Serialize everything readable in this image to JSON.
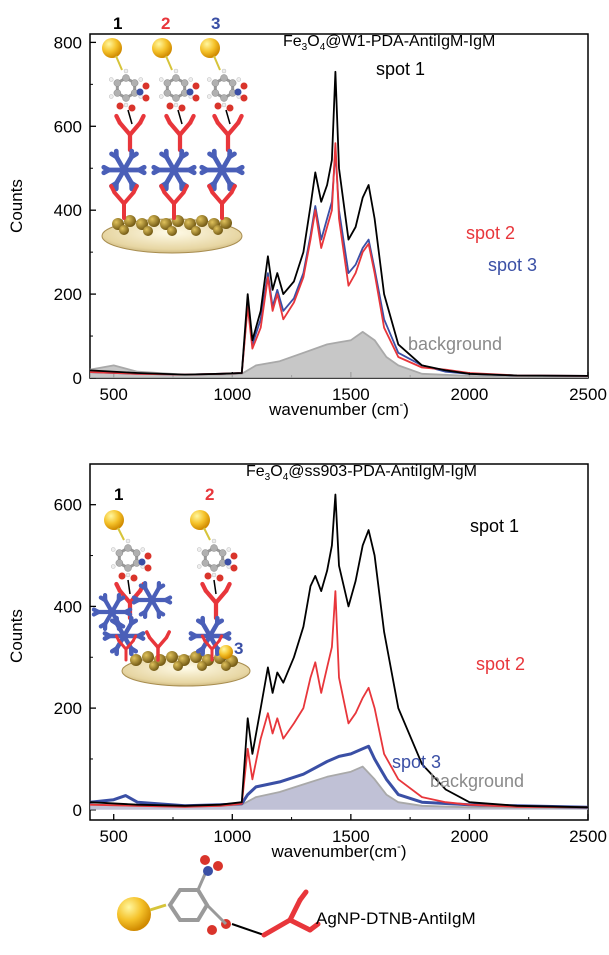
{
  "colors": {
    "spot1": "#000000",
    "spot2": "#e8363b",
    "spot3": "#3a4fa5",
    "background": "#a9a9a9",
    "background_fill": "#bdbdbd",
    "label_gray": "#8a8a8a"
  },
  "insets": {
    "top": {
      "numbers": [
        "1",
        "2",
        "3"
      ],
      "number_colors": [
        "#000000",
        "#e8363b",
        "#3a4fa5"
      ]
    },
    "bottom": {
      "numbers": [
        "1",
        "2",
        "3"
      ],
      "number_colors": [
        "#000000",
        "#e8363b",
        "#3a4fa5"
      ]
    }
  },
  "legend_molecule": {
    "label": "AgNP-DTNB-AntiIgM"
  },
  "chart_data": [
    {
      "type": "line",
      "title_parts": {
        "a": "Fe",
        "sub1": "3",
        "b": "O",
        "sub2": "4",
        "c": "@W1-PDA-AntiIgM-IgM"
      },
      "xlabel": "wavenumber (cm",
      "xlabel_sup": "-",
      "xlabel_close": ")",
      "ylabel": "Counts",
      "xlim": [
        400,
        2500
      ],
      "ylim": [
        0,
        820
      ],
      "xticks": [
        "500",
        "1000",
        "1500",
        "2000",
        "2500"
      ],
      "yticks": [
        "0",
        "200",
        "400",
        "600",
        "800"
      ],
      "grid": false,
      "series": [
        {
          "name": "spot 1",
          "label": "spot 1",
          "points": [
            [
              400,
              18
            ],
            [
              600,
              12
            ],
            [
              800,
              8
            ],
            [
              950,
              10
            ],
            [
              1040,
              12
            ],
            [
              1065,
              200
            ],
            [
              1085,
              90
            ],
            [
              1120,
              160
            ],
            [
              1150,
              290
            ],
            [
              1170,
              210
            ],
            [
              1190,
              250
            ],
            [
              1215,
              200
            ],
            [
              1260,
              230
            ],
            [
              1300,
              300
            ],
            [
              1330,
              410
            ],
            [
              1350,
              490
            ],
            [
              1375,
              420
            ],
            [
              1400,
              460
            ],
            [
              1420,
              520
            ],
            [
              1435,
              730
            ],
            [
              1450,
              500
            ],
            [
              1490,
              330
            ],
            [
              1520,
              360
            ],
            [
              1550,
              430
            ],
            [
              1575,
              460
            ],
            [
              1600,
              380
            ],
            [
              1640,
              200
            ],
            [
              1700,
              80
            ],
            [
              1800,
              30
            ],
            [
              1900,
              18
            ],
            [
              2000,
              10
            ],
            [
              2200,
              6
            ],
            [
              2500,
              5
            ]
          ]
        },
        {
          "name": "spot 2",
          "label": "spot 2",
          "points": [
            [
              400,
              14
            ],
            [
              600,
              10
            ],
            [
              800,
              8
            ],
            [
              950,
              10
            ],
            [
              1040,
              12
            ],
            [
              1065,
              170
            ],
            [
              1085,
              70
            ],
            [
              1120,
              120
            ],
            [
              1150,
              240
            ],
            [
              1170,
              160
            ],
            [
              1190,
              200
            ],
            [
              1215,
              140
            ],
            [
              1260,
              180
            ],
            [
              1300,
              240
            ],
            [
              1330,
              330
            ],
            [
              1350,
              400
            ],
            [
              1375,
              310
            ],
            [
              1400,
              360
            ],
            [
              1420,
              400
            ],
            [
              1435,
              560
            ],
            [
              1450,
              380
            ],
            [
              1490,
              220
            ],
            [
              1520,
              250
            ],
            [
              1550,
              300
            ],
            [
              1575,
              320
            ],
            [
              1600,
              250
            ],
            [
              1640,
              120
            ],
            [
              1700,
              50
            ],
            [
              1800,
              25
            ],
            [
              1900,
              20
            ],
            [
              2000,
              12
            ],
            [
              2200,
              6
            ],
            [
              2500,
              5
            ]
          ]
        },
        {
          "name": "spot 3",
          "label": "spot 3",
          "points": [
            [
              400,
              14
            ],
            [
              600,
              10
            ],
            [
              800,
              8
            ],
            [
              950,
              10
            ],
            [
              1040,
              12
            ],
            [
              1065,
              180
            ],
            [
              1085,
              80
            ],
            [
              1120,
              140
            ],
            [
              1150,
              250
            ],
            [
              1170,
              170
            ],
            [
              1190,
              210
            ],
            [
              1215,
              160
            ],
            [
              1260,
              190
            ],
            [
              1300,
              250
            ],
            [
              1330,
              340
            ],
            [
              1350,
              410
            ],
            [
              1375,
              330
            ],
            [
              1400,
              380
            ],
            [
              1420,
              420
            ],
            [
              1435,
              540
            ],
            [
              1450,
              400
            ],
            [
              1490,
              250
            ],
            [
              1520,
              270
            ],
            [
              1550,
              310
            ],
            [
              1575,
              330
            ],
            [
              1600,
              260
            ],
            [
              1640,
              140
            ],
            [
              1700,
              60
            ],
            [
              1800,
              30
            ],
            [
              1900,
              15
            ],
            [
              2000,
              10
            ],
            [
              2200,
              6
            ],
            [
              2500,
              5
            ]
          ]
        },
        {
          "name": "background",
          "label": "background",
          "points": [
            [
              400,
              20
            ],
            [
              500,
              30
            ],
            [
              600,
              15
            ],
            [
              800,
              8
            ],
            [
              950,
              8
            ],
            [
              1040,
              10
            ],
            [
              1100,
              30
            ],
            [
              1200,
              40
            ],
            [
              1300,
              60
            ],
            [
              1400,
              80
            ],
            [
              1450,
              85
            ],
            [
              1500,
              90
            ],
            [
              1550,
              110
            ],
            [
              1600,
              90
            ],
            [
              1650,
              50
            ],
            [
              1700,
              30
            ],
            [
              1800,
              10
            ],
            [
              2000,
              5
            ],
            [
              2500,
              3
            ]
          ]
        }
      ]
    },
    {
      "type": "line",
      "title_parts": {
        "a": "Fe",
        "sub1": "3",
        "b": "O",
        "sub2": "4",
        "c": "@ss903-PDA-AntiIgM-IgM"
      },
      "xlabel": "wavenumber(cm",
      "xlabel_sup": "-",
      "xlabel_close": ")",
      "ylabel": "Counts",
      "xlim": [
        400,
        2500
      ],
      "ylim": [
        -20,
        680
      ],
      "xticks": [
        "500",
        "1000",
        "1500",
        "2000",
        "2500"
      ],
      "yticks": [
        "0",
        "200",
        "400",
        "600"
      ],
      "grid": false,
      "series": [
        {
          "name": "spot 1",
          "label": "spot 1",
          "points": [
            [
              400,
              15
            ],
            [
              600,
              10
            ],
            [
              800,
              8
            ],
            [
              950,
              10
            ],
            [
              1040,
              15
            ],
            [
              1065,
              180
            ],
            [
              1085,
              110
            ],
            [
              1120,
              200
            ],
            [
              1150,
              280
            ],
            [
              1170,
              230
            ],
            [
              1190,
              270
            ],
            [
              1215,
              250
            ],
            [
              1260,
              300
            ],
            [
              1300,
              360
            ],
            [
              1330,
              440
            ],
            [
              1350,
              460
            ],
            [
              1375,
              430
            ],
            [
              1400,
              470
            ],
            [
              1420,
              520
            ],
            [
              1435,
              620
            ],
            [
              1450,
              480
            ],
            [
              1490,
              400
            ],
            [
              1520,
              450
            ],
            [
              1550,
              520
            ],
            [
              1575,
              550
            ],
            [
              1600,
              500
            ],
            [
              1640,
              350
            ],
            [
              1700,
              200
            ],
            [
              1800,
              90
            ],
            [
              1900,
              40
            ],
            [
              2000,
              15
            ],
            [
              2200,
              8
            ],
            [
              2500,
              5
            ]
          ]
        },
        {
          "name": "spot 2",
          "label": "spot 2",
          "points": [
            [
              400,
              10
            ],
            [
              600,
              8
            ],
            [
              800,
              6
            ],
            [
              950,
              8
            ],
            [
              1040,
              12
            ],
            [
              1065,
              120
            ],
            [
              1085,
              60
            ],
            [
              1120,
              140
            ],
            [
              1150,
              190
            ],
            [
              1170,
              150
            ],
            [
              1190,
              180
            ],
            [
              1215,
              140
            ],
            [
              1260,
              170
            ],
            [
              1300,
              200
            ],
            [
              1330,
              260
            ],
            [
              1350,
              290
            ],
            [
              1375,
              230
            ],
            [
              1400,
              280
            ],
            [
              1420,
              320
            ],
            [
              1435,
              430
            ],
            [
              1450,
              260
            ],
            [
              1490,
              170
            ],
            [
              1520,
              190
            ],
            [
              1550,
              220
            ],
            [
              1575,
              240
            ],
            [
              1600,
              200
            ],
            [
              1640,
              110
            ],
            [
              1700,
              60
            ],
            [
              1800,
              25
            ],
            [
              1900,
              15
            ],
            [
              2000,
              10
            ],
            [
              2200,
              6
            ],
            [
              2500,
              5
            ]
          ]
        },
        {
          "name": "spot 3",
          "label": "spot 3",
          "points": [
            [
              400,
              15
            ],
            [
              500,
              20
            ],
            [
              550,
              28
            ],
            [
              600,
              15
            ],
            [
              800,
              8
            ],
            [
              950,
              10
            ],
            [
              1040,
              12
            ],
            [
              1065,
              30
            ],
            [
              1100,
              45
            ],
            [
              1200,
              55
            ],
            [
              1300,
              70
            ],
            [
              1400,
              95
            ],
            [
              1450,
              105
            ],
            [
              1500,
              110
            ],
            [
              1550,
              120
            ],
            [
              1575,
              125
            ],
            [
              1600,
              100
            ],
            [
              1650,
              60
            ],
            [
              1700,
              30
            ],
            [
              1800,
              15
            ],
            [
              2000,
              10
            ],
            [
              2200,
              8
            ],
            [
              2500,
              5
            ]
          ]
        },
        {
          "name": "background",
          "label": "background",
          "points": [
            [
              400,
              10
            ],
            [
              600,
              8
            ],
            [
              800,
              6
            ],
            [
              950,
              8
            ],
            [
              1040,
              10
            ],
            [
              1100,
              25
            ],
            [
              1200,
              35
            ],
            [
              1300,
              50
            ],
            [
              1400,
              65
            ],
            [
              1450,
              70
            ],
            [
              1500,
              75
            ],
            [
              1550,
              85
            ],
            [
              1600,
              60
            ],
            [
              1650,
              30
            ],
            [
              1700,
              15
            ],
            [
              1800,
              8
            ],
            [
              2000,
              5
            ],
            [
              2500,
              3
            ]
          ]
        }
      ]
    }
  ]
}
